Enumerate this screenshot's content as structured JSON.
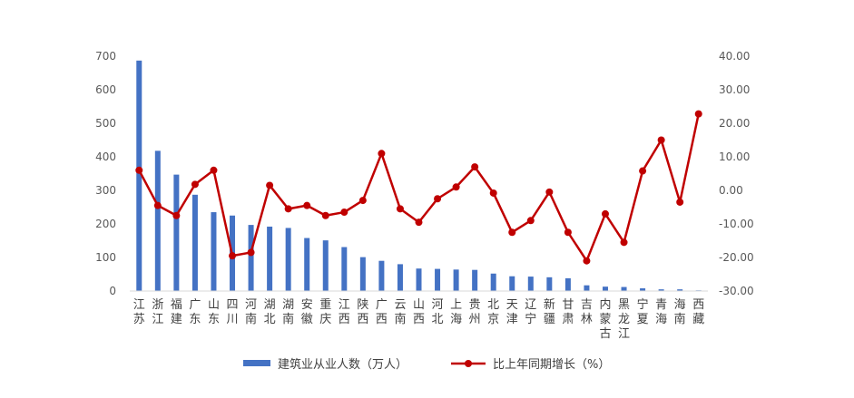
{
  "chart_data": {
    "type": "bar+line",
    "categories": [
      "江苏",
      "浙江",
      "福建",
      "广东",
      "山东",
      "四川",
      "河南",
      "湖北",
      "湖南",
      "安徽",
      "重庆",
      "江西",
      "陕西",
      "广西",
      "云南",
      "山西",
      "河北",
      "上海",
      "贵州",
      "北京",
      "天津",
      "辽宁",
      "新疆",
      "甘肃",
      "吉林",
      "内蒙古",
      "黑龙江",
      "宁夏",
      "青海",
      "海南",
      "西藏"
    ],
    "series": [
      {
        "name": "建筑业从业人数（万人）",
        "type": "bar",
        "axis": "left",
        "color": "#4472C4",
        "values": [
          687,
          418,
          347,
          287,
          235,
          225,
          197,
          192,
          188,
          158,
          151,
          131,
          101,
          90,
          80,
          67,
          66,
          64,
          63,
          52,
          44,
          43,
          41,
          38,
          17,
          13,
          12,
          8,
          5,
          5,
          2
        ]
      },
      {
        "name": "比上年同期增长（%）",
        "type": "line",
        "axis": "right",
        "color": "#C00000",
        "values": [
          6.0,
          -4.5,
          -7.5,
          1.8,
          6.0,
          -19.5,
          -18.5,
          1.5,
          -5.5,
          -4.5,
          -7.5,
          -6.5,
          -3.0,
          11.0,
          -5.5,
          -9.5,
          -2.5,
          1.0,
          7.0,
          -0.8,
          -12.5,
          -9.0,
          -0.5,
          -12.5,
          -21.0,
          -7.0,
          -15.5,
          5.8,
          15.0,
          -3.5,
          22.8
        ]
      }
    ],
    "y_left": {
      "min": 0,
      "max": 700,
      "step": 100,
      "tick_labels": [
        "0",
        "100",
        "200",
        "300",
        "400",
        "500",
        "600",
        "700"
      ]
    },
    "y_right": {
      "min": -30,
      "max": 40,
      "step": 10,
      "tick_labels": [
        "-30.00",
        "-20.00",
        "-10.00",
        "0.00",
        "10.00",
        "20.00",
        "30.00",
        "40.00"
      ]
    },
    "grid": false,
    "legend": {
      "placement": "bottom",
      "items": [
        {
          "label": "建筑业从业人数（万人）",
          "kind": "bar",
          "color": "#4472C4"
        },
        {
          "label": "比上年同期增长（%）",
          "kind": "line-marker",
          "color": "#C00000"
        }
      ]
    },
    "title": "",
    "xlabel": "",
    "ylabel": ""
  }
}
